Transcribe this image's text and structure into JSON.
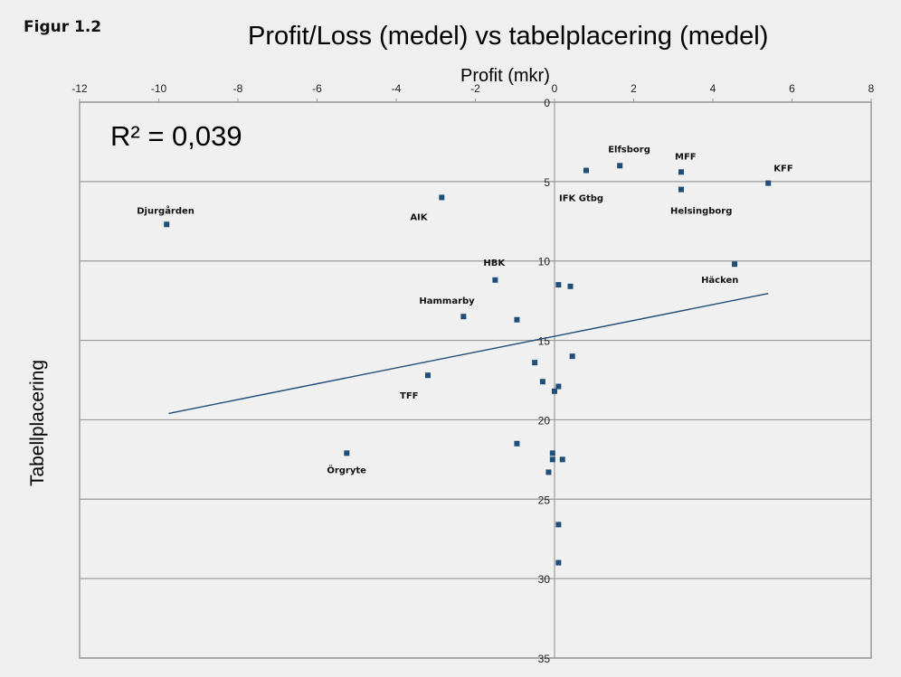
{
  "figure_label": "Figur 1.2",
  "chart_data": {
    "type": "scatter",
    "title": "Profit/Loss (medel) vs tabelplacering (medel)",
    "xlabel": "Profit (mkr)",
    "ylabel": "Tabellplacering",
    "xlim": [
      -12,
      8
    ],
    "ylim": [
      0,
      35
    ],
    "y_reversed": true,
    "x_ticks": [
      -12,
      -10,
      -8,
      -6,
      -4,
      -2,
      0,
      2,
      4,
      6,
      8
    ],
    "y_ticks": [
      0,
      5,
      10,
      15,
      20,
      25,
      30,
      35
    ],
    "grid": "horizontal",
    "annotation": "R² = 0,039",
    "marker_color": "#1f4e79",
    "trendline_color": "#1f4e79",
    "trendline": {
      "x": [
        -9.75,
        5.4
      ],
      "y": [
        19.6,
        12.05
      ]
    },
    "points": [
      {
        "label": "Djurgården",
        "x": -9.8,
        "y": 7.7
      },
      {
        "label": "AIK",
        "x": -2.85,
        "y": 6.0
      },
      {
        "label": "IFK Gtbg",
        "x": 0.8,
        "y": 4.3
      },
      {
        "label": "Elfsborg",
        "x": 1.65,
        "y": 4.0
      },
      {
        "label": "MFF",
        "x": 3.2,
        "y": 4.4
      },
      {
        "label": "Helsingborg",
        "x": 3.2,
        "y": 5.5
      },
      {
        "label": "KFF",
        "x": 5.4,
        "y": 5.1
      },
      {
        "label": "Häcken",
        "x": 4.55,
        "y": 10.2
      },
      {
        "label": "HBK",
        "x": -1.5,
        "y": 11.2
      },
      {
        "label": "",
        "x": 0.1,
        "y": 11.5
      },
      {
        "label": "",
        "x": 0.4,
        "y": 11.6
      },
      {
        "label": "Hammarby",
        "x": -2.3,
        "y": 13.5
      },
      {
        "label": "",
        "x": -0.95,
        "y": 13.7
      },
      {
        "label": "",
        "x": 0.45,
        "y": 16.0
      },
      {
        "label": "",
        "x": -0.5,
        "y": 16.4
      },
      {
        "label": "TFF",
        "x": -3.2,
        "y": 17.2
      },
      {
        "label": "",
        "x": -0.3,
        "y": 17.6
      },
      {
        "label": "",
        "x": 0.1,
        "y": 17.9
      },
      {
        "label": "",
        "x": 0.0,
        "y": 18.2
      },
      {
        "label": "Örgryte",
        "x": -5.25,
        "y": 22.1
      },
      {
        "label": "",
        "x": -0.95,
        "y": 21.5
      },
      {
        "label": "",
        "x": -0.05,
        "y": 22.1
      },
      {
        "label": "",
        "x": -0.05,
        "y": 22.5
      },
      {
        "label": "",
        "x": 0.2,
        "y": 22.5
      },
      {
        "label": "",
        "x": -0.15,
        "y": 23.3
      },
      {
        "label": "",
        "x": 0.1,
        "y": 26.6
      },
      {
        "label": "",
        "x": 0.1,
        "y": 29.0
      }
    ]
  }
}
